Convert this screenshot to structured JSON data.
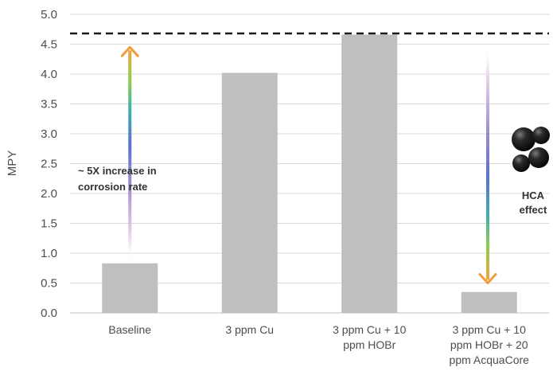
{
  "chart_data": {
    "type": "bar",
    "categories": [
      [
        "Baseline"
      ],
      [
        "3 ppm Cu"
      ],
      [
        "3 ppm Cu + 10",
        "ppm HOBr"
      ],
      [
        "3 ppm Cu + 10",
        "ppm HOBr + 20",
        "ppm AcquaCore"
      ]
    ],
    "values": [
      0.83,
      4.02,
      4.66,
      0.35
    ],
    "ylabel": "MPY",
    "xlabel": "",
    "ylim": [
      0,
      5.0
    ],
    "yticks": [
      "0.0",
      "0.5",
      "1.0",
      "1.5",
      "2.0",
      "2.5",
      "3.0",
      "3.5",
      "4.0",
      "4.5",
      "5.0"
    ],
    "grid": true,
    "reference_line": {
      "y": 4.68,
      "style": "dashed"
    },
    "bar_color": "#bfbfbf",
    "grid_color": "#d9d9d9",
    "annotations": {
      "increase": {
        "lines": [
          "~ 5X increase in",
          "corrosion rate"
        ],
        "arrow": "up",
        "from": 0.85,
        "to": 4.45
      },
      "effect": {
        "lines": [
          "HCA",
          "effect"
        ],
        "arrow": "down",
        "from": 4.45,
        "to": 0.5,
        "icon": "spheres-icon"
      }
    }
  }
}
